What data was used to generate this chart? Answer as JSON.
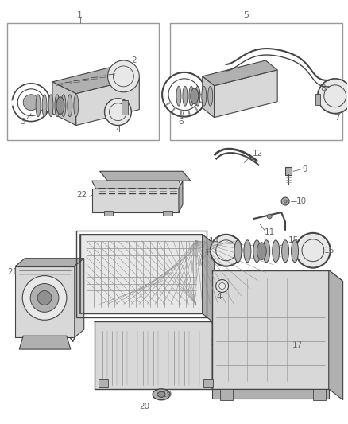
{
  "bg_color": "#ffffff",
  "line_color": "#444444",
  "label_color": "#666666",
  "gray1": "#c8c8c8",
  "gray2": "#b0b0b0",
  "gray3": "#d8d8d8",
  "gray4": "#909090",
  "gray5": "#e8e8e8",
  "box_edge": "#888888",
  "figsize": [
    4.38,
    5.33
  ],
  "dpi": 100
}
